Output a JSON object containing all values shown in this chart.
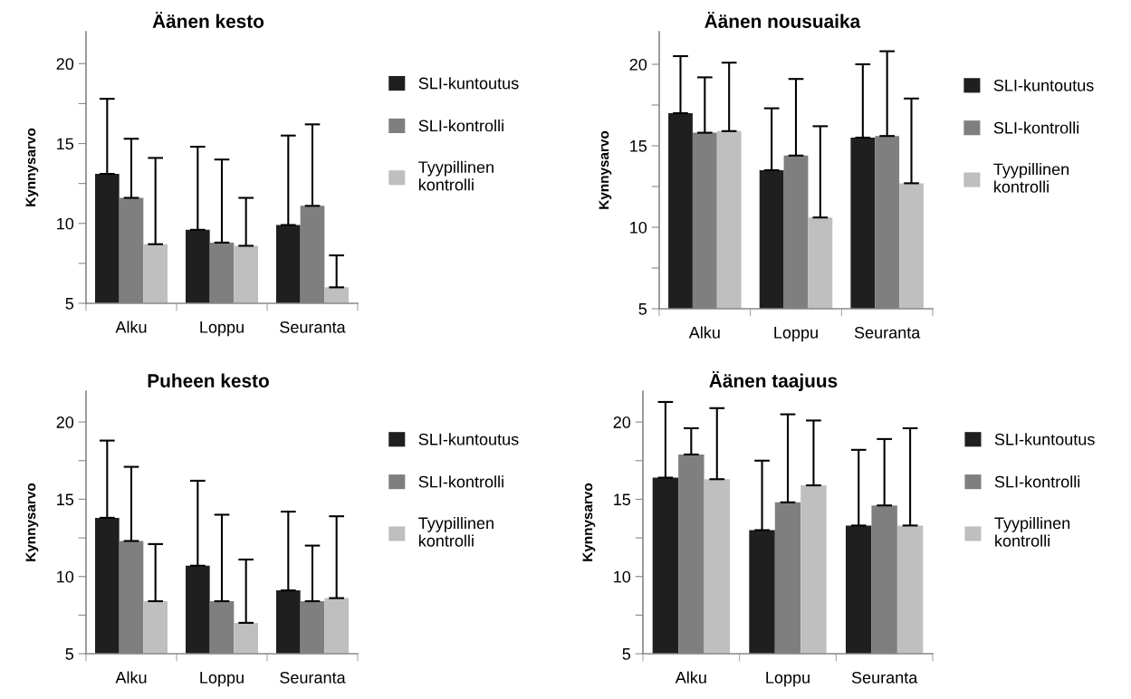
{
  "chart_data": [
    {
      "type": "bar",
      "title": "Äänen kesto",
      "ylabel": "Kynnysarvo",
      "categories": [
        "Alku",
        "Loppu",
        "Seuranta"
      ],
      "ylim": [
        5,
        22
      ],
      "yticks": [
        5,
        {
          "value": 7.5,
          "label": null
        },
        10,
        {
          "value": 12.5,
          "label": null
        },
        15,
        {
          "value": 17.5,
          "label": null
        },
        20
      ],
      "legend": "right",
      "grid": false,
      "series": [
        {
          "name": "SLI-kuntoutus",
          "color": "#1f1f1f",
          "values": [
            13.1,
            9.6,
            9.9
          ],
          "errors": [
            [
              13.1,
              17.8
            ],
            [
              9.6,
              14.8
            ],
            [
              9.9,
              15.5
            ]
          ]
        },
        {
          "name": "SLI-kontrolli",
          "color": "#7f7f7f",
          "values": [
            11.6,
            8.8,
            11.1
          ],
          "errors": [
            [
              11.6,
              15.3
            ],
            [
              8.8,
              14.0
            ],
            [
              11.1,
              16.2
            ]
          ]
        },
        {
          "name": "Tyypillinen kontrolli",
          "color": "#bfbfbf",
          "values": [
            8.7,
            8.6,
            6.0
          ],
          "errors": [
            [
              8.7,
              14.1
            ],
            [
              8.6,
              11.6
            ],
            [
              6.0,
              8.0
            ]
          ]
        }
      ]
    },
    {
      "type": "bar",
      "title": "Äänen nousuaika",
      "ylabel": "Kynnysarvo",
      "categories": [
        "Alku",
        "Loppu",
        "Seuranta"
      ],
      "ylim": [
        5,
        22
      ],
      "yticks": [
        5,
        {
          "value": 7.5,
          "label": null
        },
        10,
        {
          "value": 12.5,
          "label": null
        },
        15,
        {
          "value": 17.5,
          "label": null
        },
        20
      ],
      "legend": "right",
      "grid": false,
      "series": [
        {
          "name": "SLI-kuntoutus",
          "color": "#1f1f1f",
          "values": [
            17.0,
            13.5,
            15.5
          ],
          "errors": [
            [
              17.0,
              20.5
            ],
            [
              13.5,
              17.3
            ],
            [
              15.5,
              20.0
            ]
          ]
        },
        {
          "name": "SLI-kontrolli",
          "color": "#7f7f7f",
          "values": [
            15.8,
            14.4,
            15.6
          ],
          "errors": [
            [
              15.8,
              19.2
            ],
            [
              14.4,
              19.1
            ],
            [
              15.6,
              20.8
            ]
          ]
        },
        {
          "name": "Tyypillinen kontrolli",
          "color": "#bfbfbf",
          "values": [
            15.9,
            10.6,
            12.7
          ],
          "errors": [
            [
              15.9,
              20.1
            ],
            [
              10.6,
              16.2
            ],
            [
              12.7,
              17.9
            ]
          ]
        }
      ]
    },
    {
      "type": "bar",
      "title": "Puheen kesto",
      "ylabel": "Kynnysarvo",
      "categories": [
        "Alku",
        "Loppu",
        "Seuranta"
      ],
      "ylim": [
        5,
        22
      ],
      "yticks": [
        5,
        {
          "value": 7.5,
          "label": null
        },
        10,
        {
          "value": 12.5,
          "label": null
        },
        15,
        {
          "value": 17.5,
          "label": null
        },
        20
      ],
      "legend": "right",
      "grid": false,
      "series": [
        {
          "name": "SLI-kuntoutus",
          "color": "#1f1f1f",
          "values": [
            13.8,
            10.7,
            9.1
          ],
          "errors": [
            [
              13.8,
              18.8
            ],
            [
              10.7,
              16.2
            ],
            [
              9.1,
              14.2
            ]
          ]
        },
        {
          "name": "SLI-kontrolli",
          "color": "#7f7f7f",
          "values": [
            12.3,
            8.4,
            8.4
          ],
          "errors": [
            [
              12.3,
              17.1
            ],
            [
              8.4,
              14.0
            ],
            [
              8.4,
              12.0
            ]
          ]
        },
        {
          "name": "Tyypillinen kontrolli",
          "color": "#bfbfbf",
          "values": [
            8.4,
            7.0,
            8.6
          ],
          "errors": [
            [
              8.4,
              12.1
            ],
            [
              7.0,
              11.1
            ],
            [
              8.6,
              13.9
            ]
          ]
        }
      ]
    },
    {
      "type": "bar",
      "title": "Äänen taajuus",
      "ylabel": "Kynnysarvo",
      "categories": [
        "Alku",
        "Loppu",
        "Seuranta"
      ],
      "ylim": [
        5,
        22
      ],
      "yticks": [
        5,
        {
          "value": 7.5,
          "label": null
        },
        10,
        {
          "value": 12.5,
          "label": null
        },
        15,
        {
          "value": 17.5,
          "label": null
        },
        20
      ],
      "legend": "right",
      "grid": false,
      "series": [
        {
          "name": "SLI-kuntoutus",
          "color": "#1f1f1f",
          "values": [
            16.4,
            13.0,
            13.3
          ],
          "errors": [
            [
              16.4,
              21.3
            ],
            [
              13.0,
              17.5
            ],
            [
              13.3,
              18.2
            ]
          ]
        },
        {
          "name": "SLI-kontrolli",
          "color": "#7f7f7f",
          "values": [
            17.9,
            14.8,
            14.6
          ],
          "errors": [
            [
              17.9,
              19.6
            ],
            [
              14.8,
              20.5
            ],
            [
              14.6,
              18.9
            ]
          ]
        },
        {
          "name": "Tyypillinen kontrolli",
          "color": "#bfbfbf",
          "values": [
            16.3,
            15.9,
            13.3
          ],
          "errors": [
            [
              16.3,
              20.9
            ],
            [
              15.9,
              20.1
            ],
            [
              13.3,
              19.6
            ]
          ]
        }
      ]
    }
  ]
}
